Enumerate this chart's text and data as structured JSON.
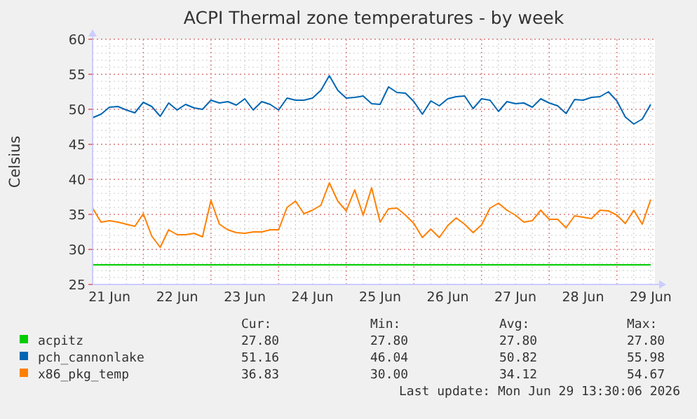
{
  "chart_data": {
    "type": "line",
    "title": "ACPI Thermal zone temperatures - by week",
    "ylabel": "Celsius",
    "xlim": [
      "2026-06-21T06:00",
      "2026-06-29T13:30"
    ],
    "xticks": [
      {
        "value": "2026-06-21T12:00",
        "label": "21 Jun"
      },
      {
        "value": "2026-06-22T12:00",
        "label": "22 Jun"
      },
      {
        "value": "2026-06-23T12:00",
        "label": "23 Jun"
      },
      {
        "value": "2026-06-24T12:00",
        "label": "24 Jun"
      },
      {
        "value": "2026-06-25T12:00",
        "label": "25 Jun"
      },
      {
        "value": "2026-06-26T12:00",
        "label": "26 Jun"
      },
      {
        "value": "2026-06-27T12:00",
        "label": "27 Jun"
      },
      {
        "value": "2026-06-28T12:00",
        "label": "28 Jun"
      },
      {
        "value": "2026-06-29T12:00",
        "label": "29 Jun"
      }
    ],
    "ylim": [
      25,
      60
    ],
    "yticks": [
      25,
      30,
      35,
      40,
      45,
      50,
      55,
      60
    ],
    "grid": true,
    "legend": "bottom",
    "marker": "none",
    "line_style": "solid",
    "x": [
      "2026-06-21T06:00",
      "2026-06-21T09:00",
      "2026-06-21T12:00",
      "2026-06-21T15:00",
      "2026-06-21T18:00",
      "2026-06-21T21:00",
      "2026-06-22T00:00",
      "2026-06-22T03:00",
      "2026-06-22T06:00",
      "2026-06-22T09:00",
      "2026-06-22T12:00",
      "2026-06-22T15:00",
      "2026-06-22T18:00",
      "2026-06-22T21:00",
      "2026-06-23T00:00",
      "2026-06-23T03:00",
      "2026-06-23T06:00",
      "2026-06-23T09:00",
      "2026-06-23T12:00",
      "2026-06-23T15:00",
      "2026-06-23T18:00",
      "2026-06-23T21:00",
      "2026-06-24T00:00",
      "2026-06-24T03:00",
      "2026-06-24T06:00",
      "2026-06-24T09:00",
      "2026-06-24T12:00",
      "2026-06-24T15:00",
      "2026-06-24T18:00",
      "2026-06-24T21:00",
      "2026-06-25T00:00",
      "2026-06-25T03:00",
      "2026-06-25T06:00",
      "2026-06-25T09:00",
      "2026-06-25T12:00",
      "2026-06-25T15:00",
      "2026-06-25T18:00",
      "2026-06-25T21:00",
      "2026-06-26T00:00",
      "2026-06-26T03:00",
      "2026-06-26T06:00",
      "2026-06-26T09:00",
      "2026-06-26T12:00",
      "2026-06-26T15:00",
      "2026-06-26T18:00",
      "2026-06-26T21:00",
      "2026-06-27T00:00",
      "2026-06-27T03:00",
      "2026-06-27T06:00",
      "2026-06-27T09:00",
      "2026-06-27T12:00",
      "2026-06-27T15:00",
      "2026-06-27T18:00",
      "2026-06-27T21:00",
      "2026-06-28T00:00",
      "2026-06-28T03:00",
      "2026-06-28T06:00",
      "2026-06-28T09:00",
      "2026-06-28T12:00",
      "2026-06-28T15:00",
      "2026-06-28T18:00",
      "2026-06-28T21:00",
      "2026-06-29T00:00",
      "2026-06-29T03:00",
      "2026-06-29T06:00",
      "2026-06-29T09:00",
      "2026-06-29T12:00"
    ],
    "series": [
      {
        "name": "acpitz",
        "color": "#00cc00",
        "x": [
          "2026-06-21T06:00",
          "2026-06-29T12:00"
        ],
        "values": [
          27.8,
          27.8
        ]
      },
      {
        "name": "pch_cannonlake",
        "color": "#0066b3",
        "values": [
          48.8,
          49.3,
          50.3,
          50.4,
          49.9,
          49.5,
          51.0,
          50.4,
          49.0,
          50.9,
          49.9,
          50.7,
          50.2,
          50.0,
          51.3,
          50.9,
          51.1,
          50.6,
          51.5,
          49.9,
          51.1,
          50.7,
          49.9,
          51.6,
          51.3,
          51.3,
          51.6,
          52.7,
          54.8,
          52.7,
          51.6,
          51.7,
          51.9,
          50.8,
          50.7,
          53.2,
          52.4,
          52.3,
          51.1,
          49.3,
          51.2,
          50.5,
          51.5,
          51.8,
          51.9,
          50.1,
          51.5,
          51.3,
          49.7,
          51.1,
          50.8,
          50.9,
          50.3,
          51.5,
          50.9,
          50.5,
          49.4,
          51.4,
          51.3,
          51.7,
          51.8,
          52.5,
          51.2,
          48.9,
          47.9,
          48.6,
          50.7
        ]
      },
      {
        "name": "x86_pkg_temp",
        "color": "#ff8000",
        "values": [
          35.9,
          33.9,
          34.1,
          33.9,
          33.6,
          33.3,
          35.1,
          31.9,
          30.3,
          32.8,
          32.1,
          32.1,
          32.3,
          31.8,
          37.0,
          33.6,
          32.8,
          32.4,
          32.3,
          32.5,
          32.5,
          32.8,
          32.8,
          36.0,
          36.9,
          35.1,
          35.6,
          36.3,
          39.5,
          36.9,
          35.5,
          38.5,
          34.9,
          38.8,
          33.9,
          35.8,
          35.9,
          34.9,
          33.7,
          31.7,
          32.9,
          31.7,
          33.4,
          34.5,
          33.6,
          32.4,
          33.5,
          35.9,
          36.6,
          35.6,
          34.9,
          33.9,
          34.1,
          35.6,
          34.3,
          34.3,
          33.1,
          34.8,
          34.6,
          34.4,
          35.6,
          35.5,
          34.9,
          33.7,
          35.6,
          33.6,
          37.1
        ]
      }
    ],
    "annotations": [
      "Cur:",
      "Min:",
      "Avg:",
      "Max:",
      "27.80",
      "27.80",
      "27.80",
      "27.80",
      "51.16",
      "46.04",
      "50.82",
      "55.98",
      "36.83",
      "30.00",
      "34.12",
      "54.67",
      "Last update: Mon Jun 29 13:30:06 2026"
    ]
  }
}
